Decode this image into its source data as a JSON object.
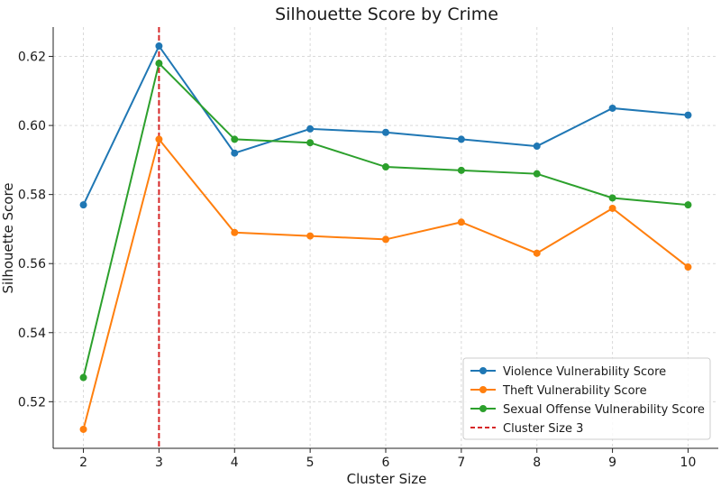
{
  "chart_data": {
    "type": "line",
    "title": "Silhouette Score by Crime",
    "xlabel": "Cluster Size",
    "ylabel": "Silhouette Score",
    "x": [
      2,
      3,
      4,
      5,
      6,
      7,
      8,
      9,
      10
    ],
    "x_ticks": [
      "2",
      "3",
      "4",
      "5",
      "6",
      "7",
      "8",
      "9",
      "10"
    ],
    "y_ticks": [
      "0.52",
      "0.54",
      "0.56",
      "0.58",
      "0.60",
      "0.62"
    ],
    "y_tick_values": [
      0.52,
      0.54,
      0.56,
      0.58,
      0.6,
      0.62
    ],
    "xlim": [
      1.6,
      10.4
    ],
    "ylim": [
      0.5065,
      0.6285
    ],
    "grid": true,
    "legend_position": "bottom-right",
    "series": [
      {
        "name": "Violence Vulnerability Score",
        "color": "#1f77b4",
        "values": [
          0.577,
          0.623,
          0.592,
          0.599,
          0.598,
          0.596,
          0.594,
          0.605,
          0.603
        ]
      },
      {
        "name": "Theft Vulnerability Score",
        "color": "#ff7f0e",
        "values": [
          0.512,
          0.596,
          0.569,
          0.568,
          0.567,
          0.572,
          0.563,
          0.576,
          0.559
        ]
      },
      {
        "name": "Sexual Offense Vulnerability Score",
        "color": "#2ca02c",
        "values": [
          0.527,
          0.618,
          0.596,
          0.595,
          0.588,
          0.587,
          0.586,
          0.579,
          0.577
        ]
      }
    ],
    "reference_line": {
      "name": "Cluster Size 3",
      "x": 3,
      "color": "#d62728",
      "style": "dashed"
    }
  }
}
